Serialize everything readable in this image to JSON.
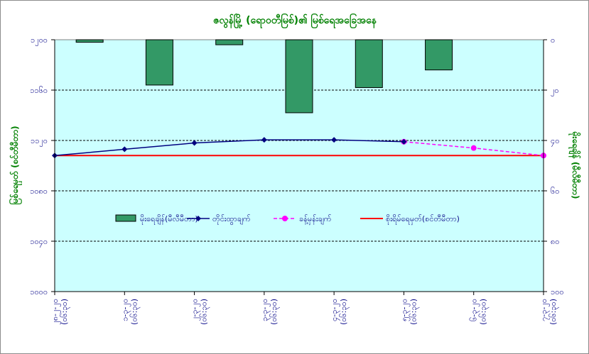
{
  "chart_data": {
    "type": "bar+line",
    "title": "ဇလွန်မြို့ (ရောဝတီမြစ်)၏ မြစ်ရေအခြေအနေ",
    "categories": [
      "၂၈-၂-၂၀ (၀၆:၃၀)",
      "၁-၃-၂၀ (၀၆:၃၀)",
      "၂-၃-၂၀ (၀၆:၃၀)",
      "၃-၃-၂၀ (၀၆:၃၀)",
      "၄-၃-၂၀ (၀၆:၃၀)",
      "၅-၃-၂၀ (၀၆:၃၀)",
      "၆-၃-၂၀ (၀၆:၃၀)",
      "၇-၃-၂၀ (၀၆:၃၀)"
    ],
    "y_left": {
      "label": "မြစ်ရေမှတ် (စင်တီမီတာ)",
      "min": 1000,
      "max": 1200,
      "step": 40,
      "tick_labels": [
        "၁၀၀၀",
        "၁၀၄၀",
        "၁၀၈၀",
        "၁၁၂၀",
        "၁၁၆၀",
        "၁၂၀၀"
      ]
    },
    "y_right": {
      "label": "မိုးရေချိန် (မီလီမီတာ)",
      "min": 0,
      "max": 100,
      "step": 20,
      "reversed": true,
      "tick_labels": [
        "၀",
        "၂၀",
        "၄၀",
        "၆၀",
        "၈၀",
        "၁၀၀"
      ]
    },
    "grid": true,
    "legend_position": "center",
    "series": [
      {
        "name": "မိုးရေချိန်(မီလီမီတာ)",
        "kind": "bar",
        "axis": "right",
        "color": "#339966",
        "values": [
          1,
          18,
          2,
          29,
          19,
          12,
          null,
          null
        ]
      },
      {
        "name": "တိုင်းထွာချက်",
        "kind": "line",
        "axis": "left",
        "color": "#000080",
        "marker": "diamond",
        "values": [
          1108,
          1113,
          1118,
          1120.5,
          1120.5,
          1119,
          null,
          null
        ]
      },
      {
        "name": "ခန့်မှန်းချက်",
        "kind": "line-dashed",
        "axis": "left",
        "color": "#ff00ff",
        "marker": "circle",
        "values": [
          null,
          null,
          null,
          null,
          null,
          1119,
          1114,
          1108
        ]
      },
      {
        "name": "စိုးရိမ်ရေမှတ်(စင်တီမီတာ)",
        "kind": "hline",
        "axis": "left",
        "color": "#ff0000",
        "value": 1108
      }
    ]
  }
}
